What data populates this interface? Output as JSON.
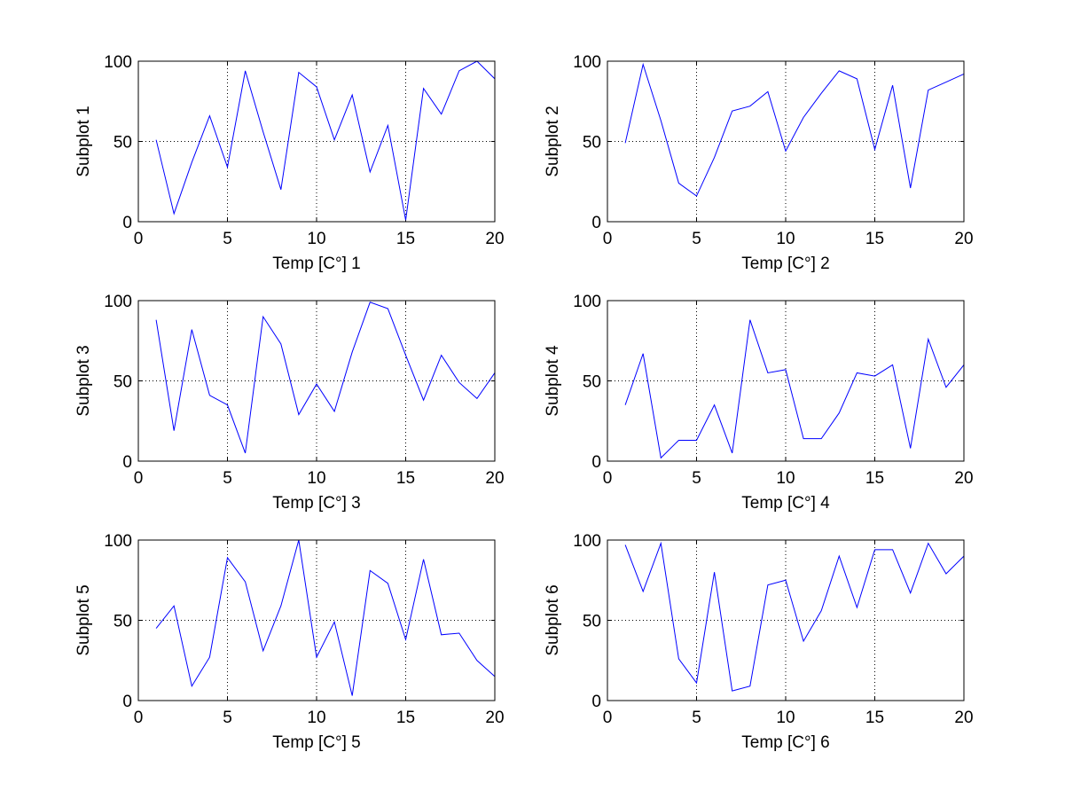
{
  "figure": {
    "background": "#ffffff",
    "line_color": "#0000ff"
  },
  "chart_data": [
    {
      "type": "line",
      "xlabel": "Temp [C°] 1",
      "ylabel": "Subplot 1",
      "xlim": [
        0,
        20
      ],
      "ylim": [
        0,
        100
      ],
      "xticks": [
        0,
        5,
        10,
        15,
        20
      ],
      "yticks": [
        0,
        50,
        100
      ],
      "grid": true,
      "x": [
        1,
        2,
        3,
        4,
        5,
        6,
        7,
        8,
        9,
        10,
        11,
        12,
        13,
        14,
        15,
        16,
        17,
        18,
        19,
        20
      ],
      "series": [
        {
          "values": [
            51,
            5,
            37,
            66,
            34,
            94,
            56,
            20,
            93,
            84,
            51,
            79,
            31,
            60,
            1,
            83,
            67,
            94,
            100,
            89
          ]
        }
      ]
    },
    {
      "type": "line",
      "xlabel": "Temp [C°] 2",
      "ylabel": "Subplot 2",
      "xlim": [
        0,
        20
      ],
      "ylim": [
        0,
        100
      ],
      "xticks": [
        0,
        5,
        10,
        15,
        20
      ],
      "yticks": [
        0,
        50,
        100
      ],
      "grid": true,
      "x": [
        1,
        2,
        3,
        4,
        5,
        6,
        7,
        8,
        9,
        10,
        11,
        12,
        13,
        14,
        15,
        16,
        17,
        18,
        19,
        20
      ],
      "series": [
        {
          "values": [
            49,
            98,
            63,
            24,
            16,
            40,
            69,
            72,
            81,
            44,
            65,
            80,
            94,
            89,
            45,
            85,
            21,
            82,
            87,
            92
          ]
        }
      ]
    },
    {
      "type": "line",
      "xlabel": "Temp [C°] 3",
      "ylabel": "Subplot 3",
      "xlim": [
        0,
        20
      ],
      "ylim": [
        0,
        100
      ],
      "xticks": [
        0,
        5,
        10,
        15,
        20
      ],
      "yticks": [
        0,
        50,
        100
      ],
      "grid": true,
      "x": [
        1,
        2,
        3,
        4,
        5,
        6,
        7,
        8,
        9,
        10,
        11,
        12,
        13,
        14,
        15,
        16,
        17,
        18,
        19,
        20
      ],
      "series": [
        {
          "values": [
            88,
            19,
            82,
            41,
            35,
            5,
            90,
            73,
            29,
            48,
            31,
            68,
            99,
            95,
            66,
            38,
            66,
            49,
            39,
            55
          ]
        }
      ]
    },
    {
      "type": "line",
      "xlabel": "Temp [C°] 4",
      "ylabel": "Subplot 4",
      "xlim": [
        0,
        20
      ],
      "ylim": [
        0,
        100
      ],
      "xticks": [
        0,
        5,
        10,
        15,
        20
      ],
      "yticks": [
        0,
        50,
        100
      ],
      "grid": true,
      "x": [
        1,
        2,
        3,
        4,
        5,
        6,
        7,
        8,
        9,
        10,
        11,
        12,
        13,
        14,
        15,
        16,
        17,
        18,
        19,
        20
      ],
      "series": [
        {
          "values": [
            35,
            67,
            2,
            13,
            13,
            35,
            5,
            88,
            55,
            57,
            14,
            14,
            30,
            55,
            53,
            60,
            8,
            76,
            46,
            60
          ]
        }
      ]
    },
    {
      "type": "line",
      "xlabel": "Temp [C°] 5",
      "ylabel": "Subplot 5",
      "xlim": [
        0,
        20
      ],
      "ylim": [
        0,
        100
      ],
      "xticks": [
        0,
        5,
        10,
        15,
        20
      ],
      "yticks": [
        0,
        50,
        100
      ],
      "grid": true,
      "x": [
        1,
        2,
        3,
        4,
        5,
        6,
        7,
        8,
        9,
        10,
        11,
        12,
        13,
        14,
        15,
        16,
        17,
        18,
        19,
        20
      ],
      "series": [
        {
          "values": [
            45,
            59,
            9,
            27,
            89,
            74,
            31,
            59,
            100,
            27,
            49,
            3,
            81,
            73,
            38,
            88,
            41,
            42,
            25,
            15
          ]
        }
      ]
    },
    {
      "type": "line",
      "xlabel": "Temp [C°] 6",
      "ylabel": "Subplot 6",
      "xlim": [
        0,
        20
      ],
      "ylim": [
        0,
        100
      ],
      "xticks": [
        0,
        5,
        10,
        15,
        20
      ],
      "yticks": [
        0,
        50,
        100
      ],
      "grid": true,
      "x": [
        1,
        2,
        3,
        4,
        5,
        6,
        7,
        8,
        9,
        10,
        11,
        12,
        13,
        14,
        15,
        16,
        17,
        18,
        19,
        20
      ],
      "series": [
        {
          "values": [
            97,
            68,
            98,
            26,
            11,
            80,
            6,
            9,
            72,
            75,
            37,
            56,
            90,
            58,
            94,
            94,
            67,
            98,
            79,
            90
          ]
        }
      ]
    }
  ]
}
